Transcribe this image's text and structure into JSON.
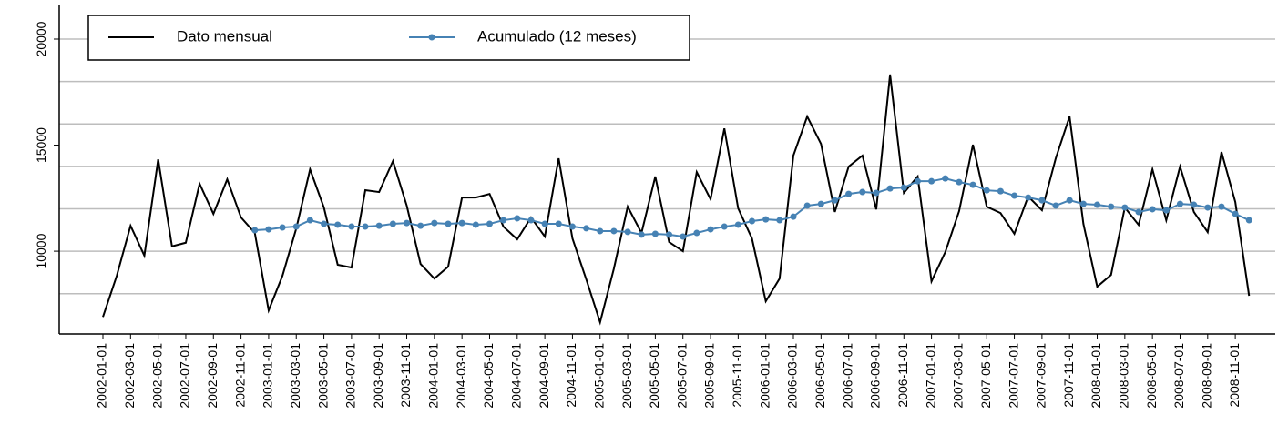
{
  "chart_data": {
    "type": "line",
    "categories": [
      "2002-01-01",
      null,
      "2002-03-01",
      null,
      "2002-05-01",
      null,
      "2002-07-01",
      null,
      "2002-09-01",
      null,
      "2002-11-01",
      null,
      "2003-01-01",
      null,
      "2003-03-01",
      null,
      "2003-05-01",
      null,
      "2003-07-01",
      null,
      "2003-09-01",
      null,
      "2003-11-01",
      null,
      "2004-01-01",
      null,
      "2004-03-01",
      null,
      "2004-05-01",
      null,
      "2004-07-01",
      null,
      "2004-09-01",
      null,
      "2004-11-01",
      null,
      "2005-01-01",
      null,
      "2005-03-01",
      null,
      "2005-05-01",
      null,
      "2005-07-01",
      null,
      "2005-09-01",
      null,
      "2005-11-01",
      null,
      "2006-01-01",
      null,
      "2006-03-01",
      null,
      "2006-05-01",
      null,
      "2006-07-01",
      null,
      "2006-09-01",
      null,
      "2006-11-01",
      null,
      "2007-01-01",
      null,
      "2007-03-01",
      null,
      "2007-05-01",
      null,
      "2007-07-01",
      null,
      "2007-09-01",
      null,
      "2007-11-01",
      null,
      "2008-01-01",
      null,
      "2008-03-01",
      null,
      "2008-05-01",
      null,
      "2008-07-01",
      null,
      "2008-09-01",
      null,
      "2008-11-01",
      null
    ],
    "series": [
      {
        "name": "Dato mensual",
        "color": "#000000",
        "markers": false,
        "values": [
          6900,
          8840,
          11200,
          9790,
          14330,
          10230,
          10400,
          13180,
          11760,
          13390,
          11590,
          10860,
          7210,
          8840,
          11070,
          13860,
          12060,
          9360,
          9230,
          12880,
          12790,
          14250,
          12150,
          9400,
          8710,
          9270,
          12530,
          12530,
          12700,
          11160,
          10560,
          11590,
          10690,
          14380,
          10600,
          8670,
          6650,
          9180,
          12100,
          10860,
          13520,
          10430,
          10000,
          13730,
          12450,
          15790,
          12020,
          10600,
          7640,
          8710,
          14510,
          16350,
          15060,
          11850,
          13990,
          14510,
          11970,
          18330,
          12750,
          13520,
          8580,
          9960,
          11890,
          15020,
          12100,
          11800,
          10820,
          12580,
          11930,
          14380,
          16350,
          11290,
          8330,
          8880,
          12060,
          11240,
          13860,
          11460,
          13990,
          11850,
          10900,
          14680,
          12320,
          7900
        ]
      },
      {
        "name": "Acumulado (12 meses)",
        "color": "#4682b4",
        "markers": true,
        "values": [
          null,
          null,
          null,
          null,
          null,
          null,
          null,
          null,
          null,
          null,
          null,
          10990,
          11030,
          11120,
          11160,
          11460,
          11290,
          11250,
          11160,
          11160,
          11200,
          11290,
          11330,
          11200,
          11330,
          11290,
          11330,
          11250,
          11290,
          11460,
          11550,
          11460,
          11290,
          11290,
          11160,
          11080,
          10950,
          10950,
          10910,
          10780,
          10820,
          10780,
          10690,
          10860,
          11030,
          11160,
          11250,
          11420,
          11500,
          11460,
          11630,
          12150,
          12230,
          12400,
          12700,
          12790,
          12750,
          12960,
          13000,
          13300,
          13300,
          13430,
          13260,
          13130,
          12870,
          12830,
          12620,
          12530,
          12400,
          12150,
          12400,
          12230,
          12190,
          12100,
          12060,
          11850,
          11980,
          11930,
          12230,
          12190,
          12060,
          12100,
          11760,
          11460
        ]
      }
    ],
    "ylim": [
      6100,
      21630
    ],
    "yticks": [
      10000,
      15000,
      20000
    ],
    "ygrid": [
      8000,
      10000,
      12000,
      14000,
      16000,
      18000,
      20000
    ],
    "grid": true,
    "legend": "top-left"
  }
}
